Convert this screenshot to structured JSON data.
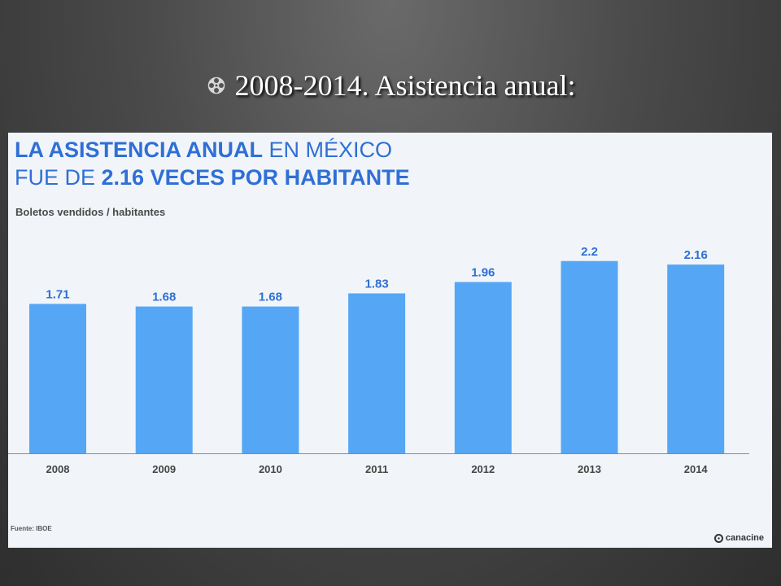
{
  "slide": {
    "title": "2008-2014. Asistencia anual:",
    "bullet_icon": "film-reel-icon"
  },
  "infographic": {
    "headline_line1_bold": "LA ASISTENCIA ANUAL",
    "headline_line1_rest": " EN MÉXICO",
    "headline_line2_start": "FUE DE ",
    "headline_line2_bold": "2.16 VECES POR HABITANTE",
    "subtitle": "Boletos vendidos / habitantes",
    "source": "Fuente: IBOE",
    "logo_text": "canacine",
    "accent_color": "#2f6fd6",
    "bar_color": "#55a7f5"
  },
  "chart_data": {
    "type": "bar",
    "categories": [
      "2008",
      "2009",
      "2010",
      "2011",
      "2012",
      "2013",
      "2014"
    ],
    "values": [
      1.71,
      1.68,
      1.68,
      1.83,
      1.96,
      2.2,
      2.16
    ],
    "value_labels": [
      "1.71",
      "1.68",
      "1.68",
      "1.83",
      "1.96",
      "2.2",
      "2.16"
    ],
    "ylim": [
      0,
      2.3
    ],
    "grid": false,
    "legend": "none"
  }
}
